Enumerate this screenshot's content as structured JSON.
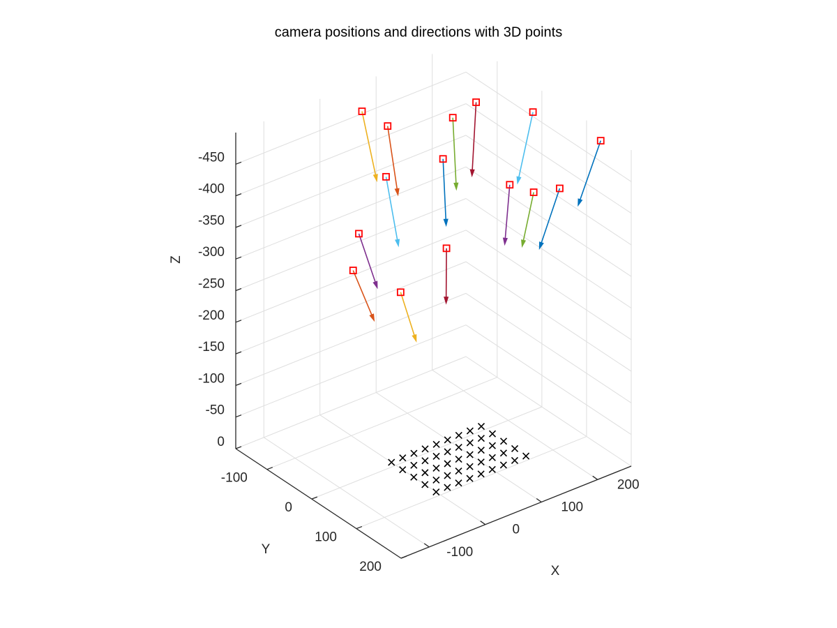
{
  "chart_data": {
    "type": "scatter3",
    "title": "camera positions and directions with 3D points",
    "xlabel": "X",
    "ylabel": "Y",
    "zlabel": "Z",
    "xlim": [
      -150,
      260
    ],
    "ylim": [
      -170,
      200
    ],
    "zlim": [
      -500,
      0
    ],
    "zdir": "reverse",
    "xticks": [
      -100,
      0,
      100,
      200
    ],
    "yticks": [
      -100,
      0,
      100,
      200
    ],
    "zticks": [
      -450,
      -400,
      -350,
      -300,
      -250,
      -200,
      -150,
      -100,
      -50,
      0
    ],
    "grid": true,
    "points": {
      "color": "#000000",
      "x": [
        0,
        20,
        40,
        60,
        80,
        100,
        120,
        140,
        160,
        0,
        20,
        40,
        60,
        80,
        100,
        120,
        140,
        160,
        0,
        20,
        40,
        60,
        80,
        100,
        120,
        140,
        160,
        0,
        20,
        40,
        60,
        80,
        100,
        120,
        140,
        160,
        0,
        20,
        40,
        60,
        80,
        100,
        120,
        140,
        160
      ],
      "y": [
        -10,
        -10,
        -10,
        -10,
        -10,
        -10,
        -10,
        -10,
        -10,
        15,
        15,
        15,
        15,
        15,
        15,
        15,
        15,
        15,
        40,
        40,
        40,
        40,
        40,
        40,
        40,
        40,
        40,
        65,
        65,
        65,
        65,
        65,
        65,
        65,
        65,
        65,
        90,
        90,
        90,
        90,
        90,
        90,
        90,
        90,
        90
      ],
      "z": [
        0,
        0,
        0,
        0,
        0,
        0,
        0,
        0,
        0,
        0,
        0,
        0,
        0,
        0,
        0,
        0,
        0,
        0,
        0,
        0,
        0,
        0,
        0,
        0,
        0,
        0,
        0,
        0,
        0,
        0,
        0,
        0,
        0,
        0,
        0,
        0,
        0,
        0,
        0,
        0,
        0,
        0,
        0,
        0,
        0
      ]
    },
    "cameras": {
      "marker_color": "#ff0000",
      "x": [
        47,
        72,
        169,
        189,
        225,
        247,
        142,
        70,
        194,
        208,
        201,
        8,
        102,
        -7,
        41
      ],
      "y": [
        -135,
        -109,
        -85,
        -58,
        24,
        148,
        -73,
        -110,
        11,
        47,
        114,
        -93,
        -15,
        -87,
        -41
      ],
      "z": [
        -480,
        -460,
        -450,
        -480,
        -490,
        -495,
        -400,
        -380,
        -380,
        -380,
        -420,
        -320,
        -300,
        -270,
        -240
      ],
      "u": [
        -4,
        -8,
        -20,
        -32,
        -40,
        -32,
        -12,
        -6,
        -20,
        -18,
        -27,
        15,
        -7,
        14,
        10
      ],
      "v": [
        38,
        33,
        33,
        31,
        16,
        -10,
        22,
        35,
        14,
        -3,
        -11,
        22,
        8,
        29,
        22
      ],
      "w": [
        90,
        90,
        90,
        90,
        90,
        95,
        90,
        90,
        80,
        80,
        90,
        80,
        80,
        70,
        70
      ],
      "colors": [
        "#EDB120",
        "#D95319",
        "#77AC30",
        "#A2142F",
        "#4DBEEE",
        "#0072BD",
        "#0072BD",
        "#4DBEEE",
        "#7E2F8E",
        "#77AC30",
        "#0072BD",
        "#7E2F8E",
        "#A2142F",
        "#D95319",
        "#EDB120"
      ]
    }
  }
}
